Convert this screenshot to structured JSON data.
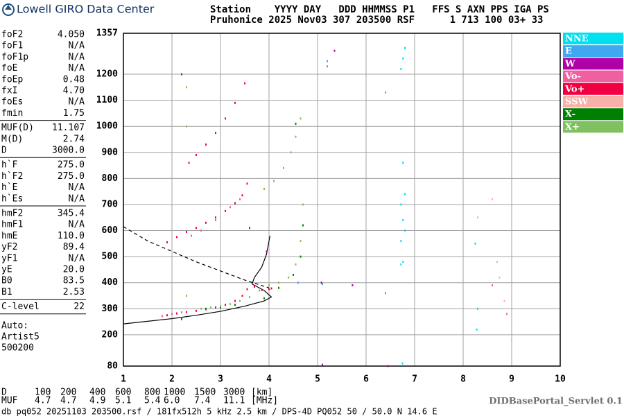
{
  "header": {
    "logo": "Lowell GIRO Data Center",
    "line1": "Station    YYYY DAY   DDD HHMMSS P1   FFS S AXN PPS IGA PS",
    "line2": "Pruhonice 2025 Nov03 307 203500 RSF      1 713 100 03+ 33"
  },
  "parameters": [
    [
      [
        "foF2",
        "4.050"
      ],
      [
        "foF1",
        "N/A"
      ],
      [
        "foF1p",
        "N/A"
      ],
      [
        "foE",
        "N/A"
      ],
      [
        "foEp",
        "0.48"
      ],
      [
        "fxI",
        "4.70"
      ],
      [
        "foEs",
        "N/A"
      ],
      [
        "fmin",
        "1.75"
      ]
    ],
    [
      [
        "MUF(D)",
        "11.107"
      ],
      [
        "M(D)",
        "2.74"
      ],
      [
        "D",
        "3000.0"
      ]
    ],
    [
      [
        "h`F",
        "275.0"
      ],
      [
        "h`F2",
        "275.0"
      ],
      [
        "h`E",
        "N/A"
      ],
      [
        "h`Es",
        "N/A"
      ]
    ],
    [
      [
        "hmF2",
        "345.4"
      ],
      [
        "hmF1",
        "N/A"
      ],
      [
        "hmE",
        "110.0"
      ],
      [
        "yF2",
        "89.4"
      ],
      [
        "yF1",
        "N/A"
      ],
      [
        "yE",
        "20.0"
      ],
      [
        "B0",
        "83.5"
      ],
      [
        "B1",
        "2.53"
      ]
    ],
    [
      [
        "C-level",
        "22"
      ]
    ]
  ],
  "autoscaling": [
    "Auto:",
    "Artist5",
    "500200"
  ],
  "chart_data": {
    "type": "scatter",
    "xlim": [
      1,
      10
    ],
    "xticks": [
      1,
      2,
      3,
      4,
      5,
      6,
      7,
      8,
      9,
      10
    ],
    "ylim": [
      80,
      1357
    ],
    "yticks": [
      80,
      200,
      300,
      400,
      500,
      600,
      700,
      800,
      900,
      1000,
      1100,
      1200,
      1357
    ],
    "grid": true,
    "series": [
      {
        "name": "NNE",
        "color": "#00e0f0",
        "x": [
          6.72,
          6.72,
          6.72,
          6.76,
          6.76,
          6.8,
          6.8,
          6.72,
          6.76,
          6.8,
          8.25,
          8.3,
          8.28,
          6.75,
          6.76
        ],
        "y": [
          470,
          560,
          700,
          480,
          640,
          600,
          740,
          1220,
          1260,
          1300,
          550,
          300,
          220,
          90,
          860
        ]
      },
      {
        "name": "E",
        "color": "#40a8f0",
        "x": [
          5.2,
          5.2,
          4.6,
          6.4,
          5.1,
          6.4
        ],
        "y": [
          1230,
          1250,
          400,
          360,
          395,
          1130
        ]
      },
      {
        "name": "W",
        "color": "#b000a8",
        "x": [
          5.08,
          5.72,
          6.45,
          5.1,
          3.95,
          5.35
        ],
        "y": [
          400,
          390,
          80,
          85,
          520,
          1290
        ]
      },
      {
        "name": "Vo-",
        "color": "#f060a0",
        "x": [
          1.8,
          2.0,
          2.2,
          2.4,
          2.6,
          2.9,
          3.2,
          3.4,
          8.6,
          8.9
        ],
        "y": [
          272,
          280,
          286,
          580,
          600,
          640,
          690,
          720,
          390,
          280
        ]
      },
      {
        "name": "Vo+",
        "color": "#f00040",
        "x": [
          1.9,
          2.1,
          2.3,
          2.5,
          2.7,
          2.9,
          3.1,
          3.3,
          3.45,
          3.55,
          3.7,
          3.85,
          4.0,
          4.05,
          1.9,
          2.1,
          2.3,
          2.5,
          2.7,
          2.9,
          3.1,
          3.3,
          3.45,
          3.55,
          2.35,
          2.5,
          2.7,
          2.9,
          3.1,
          3.3,
          3.5
        ],
        "y": [
          275,
          282,
          287,
          292,
          298,
          305,
          315,
          330,
          350,
          375,
          385,
          372,
          375,
          378,
          555,
          575,
          595,
          610,
          630,
          650,
          675,
          705,
          735,
          780,
          860,
          890,
          930,
          975,
          1030,
          1090,
          1165
        ]
      },
      {
        "name": "SSW",
        "color": "#f8b0a8",
        "x": [
          8.7,
          8.75,
          8.85,
          9.0,
          8.3,
          8.6
        ],
        "y": [
          480,
          420,
          330,
          180,
          650,
          720
        ]
      },
      {
        "name": "X-",
        "color": "#008000",
        "x": [
          2.7,
          3.0,
          3.3,
          3.6,
          3.9,
          4.2,
          4.5,
          4.65,
          4.7,
          2.2,
          2.2,
          4.55
        ],
        "y": [
          300,
          305,
          315,
          610,
          340,
          380,
          430,
          500,
          620,
          260,
          1200,
          1010
        ]
      },
      {
        "name": "X+",
        "color": "#80c060",
        "x": [
          2.6,
          2.8,
          3.0,
          3.2,
          3.4,
          3.6,
          3.8,
          4.0,
          4.2,
          4.4,
          4.55,
          4.65,
          4.7,
          3.9,
          4.1,
          4.3,
          4.45,
          4.55,
          4.65,
          2.3,
          2.3,
          2.3
        ],
        "y": [
          300,
          305,
          310,
          318,
          330,
          345,
          370,
          390,
          400,
          420,
          470,
          560,
          700,
          760,
          790,
          840,
          900,
          960,
          1030,
          1150,
          1000,
          350
        ]
      }
    ],
    "curves": [
      {
        "style": "solid",
        "x": [
          1.0,
          1.5,
          2.0,
          2.5,
          3.0,
          3.5,
          3.9,
          4.05,
          3.9,
          3.65,
          3.7,
          3.85,
          3.95,
          4.02
        ],
        "y": [
          242,
          252,
          262,
          275,
          290,
          310,
          330,
          345,
          370,
          395,
          420,
          460,
          510,
          580
        ]
      },
      {
        "style": "dashed",
        "x": [
          1.0,
          1.5,
          2.0,
          2.5,
          3.0,
          3.5,
          4.0
        ],
        "y": [
          615,
          560,
          520,
          480,
          445,
          410,
          380
        ]
      }
    ]
  },
  "distance_row": {
    "label": "D",
    "values": [
      "100",
      "200",
      "400",
      "600",
      "800",
      "1000",
      "1500",
      "3000"
    ],
    "unit": "[km]"
  },
  "muf_row": {
    "label": "MUF",
    "values": [
      "4.7",
      "4.7",
      "4.9",
      "5.1",
      "5.4",
      "6.0",
      "7.4",
      "11.1"
    ],
    "unit": "[MHz]"
  },
  "footer": {
    "file": "db pq052 20251103 203500.rsf / 181fx512h 5 kHz 2.5 km / DPS-4D PQ052 50 / 50.0 N 14.6 E",
    "servlet": "DIDBasePortal_Servlet 0.1"
  }
}
